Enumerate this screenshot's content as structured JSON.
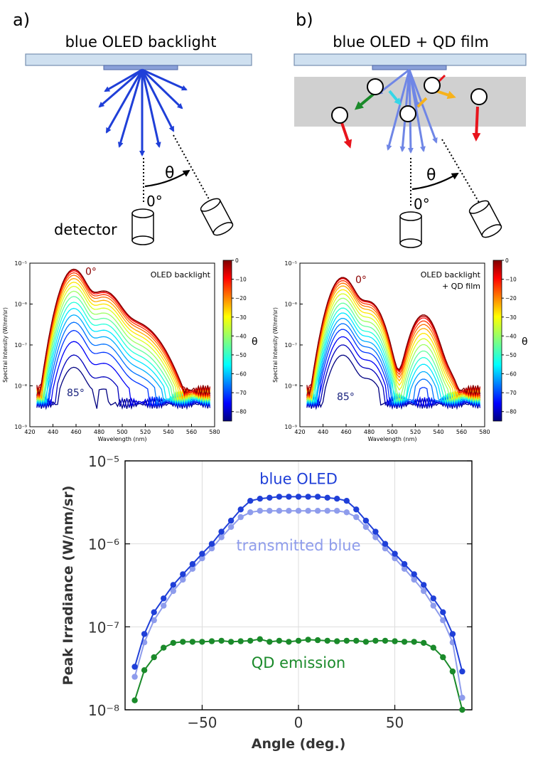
{
  "panels": {
    "a": {
      "label": "a)",
      "title": "blue OLED backlight",
      "angle_symbol": "θ",
      "zero_label": "0°",
      "detector_label": "detector"
    },
    "b": {
      "label": "b)",
      "title": "blue OLED + QD film",
      "angle_symbol": "θ",
      "zero_label": "0°"
    }
  },
  "colors": {
    "oled_blue": "#1f3fd8",
    "faded_blue": "#6f86e6",
    "qd_green": "#1a8a2a",
    "red": "#e8141c",
    "orange": "#f7b21b",
    "cyan": "#35d6e8",
    "film_gray": "#d0d0d0",
    "backlight_fill": "#cfe0f0",
    "backlight_edge": "#7890b0",
    "oled_chip": "#8aa0d8"
  },
  "chart_data": [
    {
      "id": "spectra_oled",
      "type": "line",
      "title": "",
      "annotation": "OLED backlight",
      "xlabel": "Wavelength (nm)",
      "ylabel": "Spectral Intensity (W/nm/sr)",
      "xlim": [
        420,
        580
      ],
      "ylim_exp": [
        -9,
        -5
      ],
      "x_ticks": [
        420,
        440,
        460,
        480,
        500,
        520,
        540,
        560,
        580
      ],
      "y_tick_labels": [
        "10⁻⁹",
        "10⁻⁸",
        "10⁻⁷",
        "10⁻⁶",
        "10⁻⁵"
      ],
      "peak_label_top": "0°",
      "peak_label_bottom": "85°",
      "colorbar": {
        "label": "θ",
        "range": [
          -85,
          0
        ],
        "tick_values": [
          0,
          -10,
          -20,
          -30,
          -40,
          -50,
          -60,
          -70,
          -80
        ],
        "tick_labels": [
          "0",
          "−10",
          "−20",
          "−30",
          "−40",
          "−50",
          "−60",
          "−70",
          "−80"
        ]
      },
      "series_angles": [
        0,
        -5,
        -10,
        -15,
        -20,
        -25,
        -30,
        -35,
        -40,
        -45,
        -50,
        -55,
        -60,
        -65,
        -70,
        -75,
        -80,
        -85
      ],
      "peak_log_intensity": [
        -5.15,
        -5.16,
        -5.19,
        -5.24,
        -5.3,
        -5.38,
        -5.47,
        -5.57,
        -5.69,
        -5.82,
        -5.96,
        -6.11,
        -6.27,
        -6.45,
        -6.65,
        -6.92,
        -7.25,
        -7.55
      ],
      "qd_peak_log_offset": null
    },
    {
      "id": "spectra_qd",
      "type": "line",
      "title": "",
      "annotation": "OLED backlight\n+ QD film",
      "annotation_lines": [
        "OLED backlight",
        "+ QD film"
      ],
      "xlabel": "Wavelength (nm)",
      "ylabel": "Spectral Intensity (W/nm/sr)",
      "xlim": [
        420,
        580
      ],
      "ylim_exp": [
        -9,
        -5
      ],
      "x_ticks": [
        420,
        440,
        460,
        480,
        500,
        520,
        540,
        560,
        580
      ],
      "y_tick_labels": [
        "10⁻⁹",
        "10⁻⁸",
        "10⁻⁷",
        "10⁻⁶",
        "10⁻⁵"
      ],
      "peak_label_top": "0°",
      "peak_label_bottom": "85°",
      "colorbar": {
        "label": "θ",
        "range": [
          -85,
          0
        ],
        "tick_values": [
          0,
          -10,
          -20,
          -30,
          -40,
          -50,
          -60,
          -70,
          -80
        ],
        "tick_labels": [
          "0",
          "−10",
          "−20",
          "−30",
          "−40",
          "−50",
          "−60",
          "−70",
          "−80"
        ]
      },
      "series_angles": [
        0,
        -5,
        -10,
        -15,
        -20,
        -25,
        -30,
        -35,
        -40,
        -45,
        -50,
        -55,
        -60,
        -65,
        -70,
        -75,
        -80,
        -85
      ],
      "peak_log_intensity": [
        -5.35,
        -5.36,
        -5.38,
        -5.43,
        -5.49,
        -5.56,
        -5.65,
        -5.75,
        -5.86,
        -5.98,
        -6.1,
        -6.22,
        -6.35,
        -6.48,
        -6.62,
        -6.8,
        -7.0,
        -7.25
      ]
    },
    {
      "id": "peak_irradiance",
      "type": "line",
      "xlabel": "Angle (deg.)",
      "ylabel": "Peak Irradiance (W/nm/sr)",
      "xlim": [
        -90,
        90
      ],
      "ylim_exp": [
        -8,
        -5
      ],
      "x_ticks": [
        -50,
        0,
        50
      ],
      "x_tick_labels": [
        "−50",
        "0",
        "50"
      ],
      "y_tick_labels": [
        "10⁻⁸",
        "10⁻⁷",
        "10⁻⁶",
        "10⁻⁵"
      ],
      "x": [
        -85,
        -80,
        -75,
        -70,
        -65,
        -60,
        -55,
        -50,
        -45,
        -40,
        -35,
        -30,
        -25,
        -20,
        -15,
        -10,
        -5,
        0,
        5,
        10,
        15,
        20,
        25,
        30,
        35,
        40,
        45,
        50,
        55,
        60,
        65,
        70,
        75,
        80,
        85
      ],
      "series": [
        {
          "name": "blue OLED",
          "color": "#1f3fd8",
          "values": [
            3.3e-08,
            8.2e-08,
            1.5e-07,
            2.2e-07,
            3.2e-07,
            4.3e-07,
            5.7e-07,
            7.6e-07,
            1e-06,
            1.4e-06,
            1.9e-06,
            2.6e-06,
            3.3e-06,
            3.5e-06,
            3.6e-06,
            3.7e-06,
            3.7e-06,
            3.7e-06,
            3.7e-06,
            3.7e-06,
            3.6e-06,
            3.5e-06,
            3.3e-06,
            2.6e-06,
            1.9e-06,
            1.4e-06,
            1e-06,
            7.6e-07,
            5.7e-07,
            4.3e-07,
            3.2e-07,
            2.2e-07,
            1.5e-07,
            8.2e-08,
            2.9e-08
          ]
        },
        {
          "name": "transmitted blue",
          "color": "#8e9cec",
          "values": [
            2.5e-08,
            6.5e-08,
            1.2e-07,
            1.8e-07,
            2.7e-07,
            3.7e-07,
            5e-07,
            6.7e-07,
            8.8e-07,
            1.2e-06,
            1.6e-06,
            2.1e-06,
            2.4e-06,
            2.5e-06,
            2.5e-06,
            2.5e-06,
            2.5e-06,
            2.5e-06,
            2.5e-06,
            2.5e-06,
            2.5e-06,
            2.5e-06,
            2.4e-06,
            2.1e-06,
            1.6e-06,
            1.2e-06,
            8.8e-07,
            6.7e-07,
            5e-07,
            3.7e-07,
            2.7e-07,
            1.8e-07,
            1.2e-07,
            6.5e-08,
            1.4e-08
          ]
        },
        {
          "name": "QD emission",
          "color": "#1a8a2a",
          "values": [
            1.3e-08,
            3e-08,
            4.3e-08,
            5.6e-08,
            6.4e-08,
            6.6e-08,
            6.6e-08,
            6.6e-08,
            6.7e-08,
            6.8e-08,
            6.6e-08,
            6.7e-08,
            6.8e-08,
            7.1e-08,
            6.6e-08,
            6.8e-08,
            6.6e-08,
            6.8e-08,
            7e-08,
            6.9e-08,
            6.8e-08,
            6.7e-08,
            6.8e-08,
            6.8e-08,
            6.6e-08,
            6.8e-08,
            6.8e-08,
            6.7e-08,
            6.6e-08,
            6.6e-08,
            6.4e-08,
            5.6e-08,
            4.3e-08,
            2.9e-08,
            1e-08
          ]
        }
      ]
    }
  ]
}
